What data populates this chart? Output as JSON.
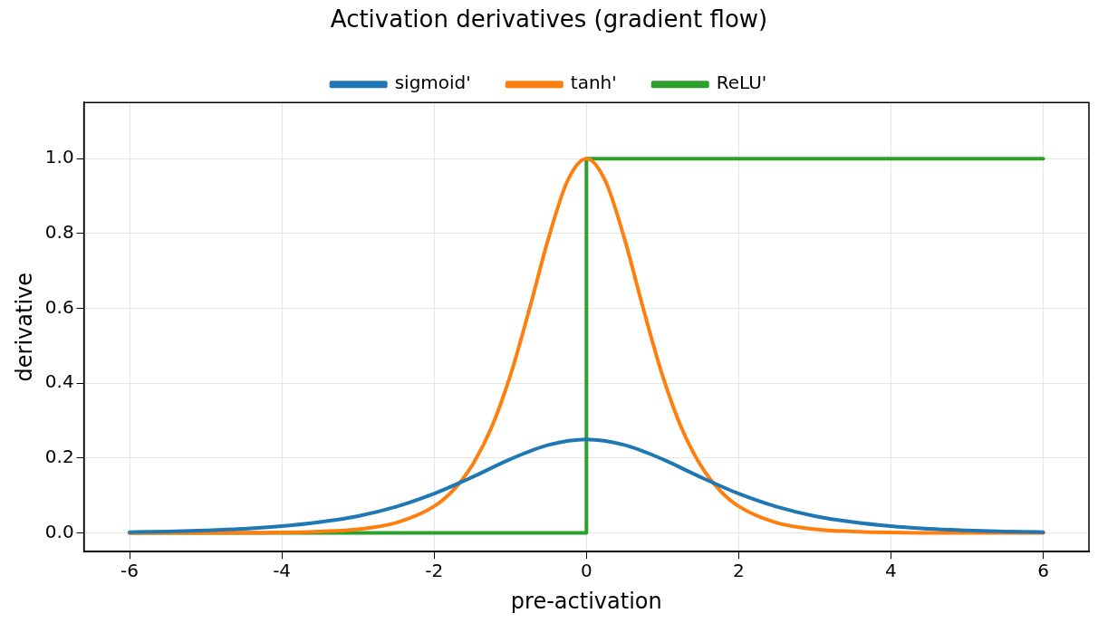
{
  "chart_data": {
    "type": "line",
    "title": "Activation derivatives (gradient flow)",
    "xlabel": "pre-activation",
    "ylabel": "derivative",
    "xlim": [
      -6.6,
      6.6
    ],
    "ylim": [
      -0.05,
      1.15
    ],
    "xticks": [
      -6,
      -4,
      -2,
      0,
      2,
      4,
      6
    ],
    "yticks": [
      {
        "value": 0,
        "label": "0.0"
      },
      {
        "value": 0.2,
        "label": "0.2"
      },
      {
        "value": 0.4,
        "label": "0.4"
      },
      {
        "value": 0.6,
        "label": "0.6"
      },
      {
        "value": 0.8,
        "label": "0.8"
      },
      {
        "value": 1,
        "label": "1.0"
      }
    ],
    "grid": true,
    "legend": "top",
    "marker": "none",
    "line_style": "solid",
    "series": [
      {
        "name": "sigmoid'",
        "color": "#1f77b4",
        "x": [
          -6,
          -5.5,
          -5,
          -4.5,
          -4,
          -3.5,
          -3,
          -2.5,
          -2,
          -1.5,
          -1,
          -0.5,
          0,
          0.5,
          1,
          1.5,
          2,
          2.5,
          3,
          3.5,
          4,
          4.5,
          5,
          5.5,
          6
        ],
        "values": [
          0.002,
          0.004,
          0.007,
          0.011,
          0.018,
          0.029,
          0.045,
          0.07,
          0.105,
          0.149,
          0.197,
          0.235,
          0.25,
          0.235,
          0.197,
          0.149,
          0.105,
          0.07,
          0.045,
          0.029,
          0.018,
          0.011,
          0.007,
          0.004,
          0.002
        ]
      },
      {
        "name": "tanh'",
        "color": "#ff7f0e",
        "x": [
          -6,
          -5,
          -4,
          -3.5,
          -3,
          -2.5,
          -2,
          -1.75,
          -1.5,
          -1.25,
          -1,
          -0.75,
          -0.5,
          -0.25,
          0,
          0.25,
          0.5,
          0.75,
          1,
          1.25,
          1.5,
          1.75,
          2,
          2.5,
          3,
          3.5,
          4,
          5,
          6
        ],
        "values": [
          0,
          0,
          0.001,
          0.004,
          0.01,
          0.027,
          0.071,
          0.114,
          0.181,
          0.28,
          0.42,
          0.597,
          0.786,
          0.94,
          1,
          0.94,
          0.786,
          0.597,
          0.42,
          0.28,
          0.181,
          0.114,
          0.071,
          0.027,
          0.01,
          0.004,
          0.001,
          0,
          0
        ]
      },
      {
        "name": "ReLU'",
        "color": "#2ca02c",
        "x": [
          -6,
          0,
          0,
          6
        ],
        "values": [
          0,
          0,
          1,
          1
        ]
      }
    ]
  }
}
